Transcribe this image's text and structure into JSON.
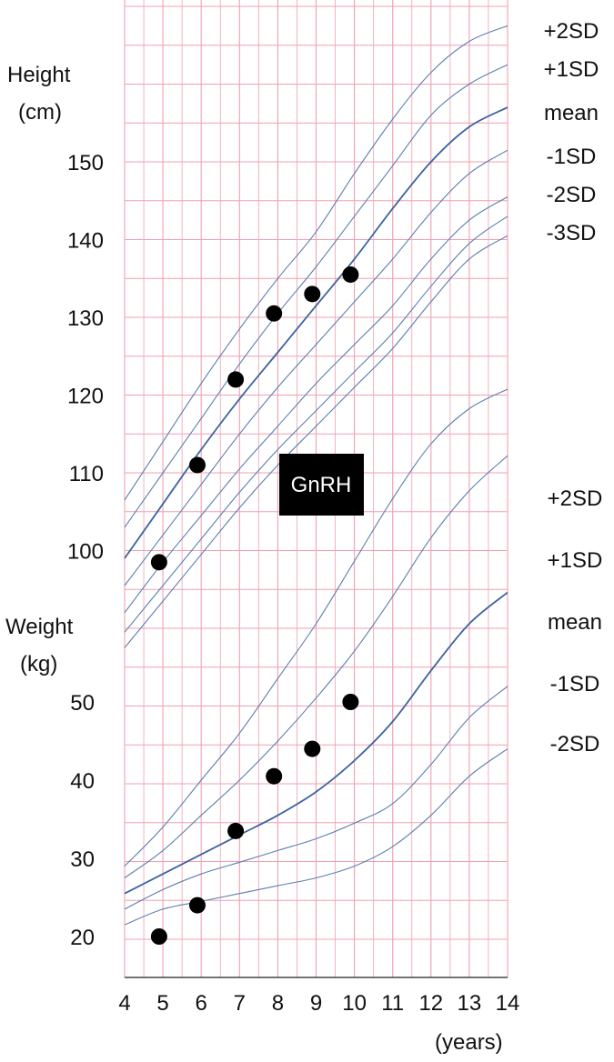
{
  "chart_data": {
    "type": "scatter",
    "x_ticks": [
      4,
      5,
      6,
      7,
      8,
      9,
      10,
      11,
      12,
      13,
      14
    ],
    "x_unit": "(years)",
    "height_axis": {
      "label_line1": "Height",
      "label_line2": "(cm)",
      "ticks": [
        100,
        110,
        120,
        130,
        140,
        150
      ]
    },
    "weight_axis": {
      "label_line1": "Weight",
      "label_line2": "(kg)",
      "ticks": [
        20,
        30,
        40,
        50
      ]
    },
    "annotation": "GnRH",
    "colors": {
      "grid": "#f0a0b0",
      "curve": "#5a7fb0",
      "mean_curve": "#3c64a0",
      "point": "#000000"
    },
    "height_sd_labels": [
      "+2SD",
      "+1SD",
      "mean",
      "-1SD",
      "-2SD",
      "-3SD"
    ],
    "weight_sd_labels": [
      "+2SD",
      "+1SD",
      "mean",
      "-1SD",
      "-2SD"
    ],
    "height_curves": [
      {
        "name": "+2SD",
        "x": [
          4,
          5,
          6,
          7,
          8,
          9,
          10,
          11,
          12,
          13,
          14
        ],
        "y": [
          106.5,
          114,
          121.5,
          128.5,
          135,
          141,
          148.5,
          155.5,
          161.5,
          165.5,
          167.5
        ]
      },
      {
        "name": "+1SD",
        "x": [
          4,
          5,
          6,
          7,
          8,
          9,
          10,
          11,
          12,
          13,
          14
        ],
        "y": [
          103,
          110,
          117,
          124,
          130.5,
          136.5,
          143,
          149.5,
          156,
          160,
          162.5
        ]
      },
      {
        "name": "mean",
        "x": [
          4,
          5,
          6,
          7,
          8,
          9,
          10,
          11,
          12,
          13,
          14
        ],
        "y": [
          99,
          106,
          113,
          119.5,
          125.5,
          131.5,
          137.5,
          144,
          150,
          154.5,
          157
        ]
      },
      {
        "name": "-1SD",
        "x": [
          4,
          5,
          6,
          7,
          8,
          9,
          10,
          11,
          12,
          13,
          14
        ],
        "y": [
          95.5,
          102,
          108.5,
          115,
          121,
          126.5,
          132,
          137.5,
          143.5,
          148.5,
          151.5
        ]
      },
      {
        "name": "-2SD",
        "x": [
          4,
          5,
          6,
          7,
          8,
          9,
          10,
          11,
          12,
          13,
          14
        ],
        "y": [
          92,
          98.5,
          104.5,
          110.5,
          116,
          121.5,
          126.5,
          131.5,
          137.5,
          142.5,
          145.5
        ]
      },
      {
        "name": "-3SD (upper)",
        "x": [
          4,
          5,
          6,
          7,
          8,
          9,
          10,
          11,
          12,
          13,
          14
        ],
        "y": [
          89.5,
          95.5,
          101.5,
          107.5,
          113,
          118,
          123,
          128,
          134,
          139.5,
          143
        ]
      },
      {
        "name": "-3SD",
        "x": [
          4,
          5,
          6,
          7,
          8,
          9,
          10,
          11,
          12,
          13,
          14
        ],
        "y": [
          87.5,
          93.5,
          99.5,
          105.5,
          111,
          116,
          121,
          126,
          132,
          137.5,
          140.5
        ]
      }
    ],
    "weight_curves": [
      {
        "name": "+2SD",
        "x": [
          4,
          5,
          6,
          7,
          8,
          9,
          10,
          11,
          12,
          13,
          14
        ],
        "y": [
          29,
          34,
          40,
          46,
          53,
          60,
          68,
          76,
          83,
          87.5,
          90
        ]
      },
      {
        "name": "+1SD",
        "x": [
          4,
          5,
          6,
          7,
          8,
          9,
          10,
          11,
          12,
          13,
          14
        ],
        "y": [
          27.5,
          31,
          35.5,
          40,
          45,
          50.5,
          56.5,
          63.5,
          71,
          77,
          81.5
        ]
      },
      {
        "name": "mean",
        "x": [
          4,
          5,
          6,
          7,
          8,
          9,
          10,
          11,
          12,
          13,
          14
        ],
        "y": [
          25.5,
          28,
          30.5,
          33,
          35.5,
          38.5,
          42.5,
          47.5,
          54,
          60,
          64
        ]
      },
      {
        "name": "-1SD",
        "x": [
          4,
          5,
          6,
          7,
          8,
          9,
          10,
          11,
          12,
          13,
          14
        ],
        "y": [
          23.5,
          26,
          28,
          29.5,
          31,
          32.5,
          34.5,
          37,
          42,
          48,
          52
        ]
      },
      {
        "name": "-2SD",
        "x": [
          4,
          5,
          6,
          7,
          8,
          9,
          10,
          11,
          12,
          13,
          14
        ],
        "y": [
          21.5,
          23.5,
          24.5,
          25.5,
          26.5,
          27.5,
          29,
          31.5,
          35.5,
          40.5,
          44
        ]
      }
    ],
    "height_points": {
      "x": [
        4.9,
        5.9,
        6.9,
        7.9,
        8.9,
        9.9
      ],
      "y": [
        98.5,
        111,
        122,
        130.5,
        133,
        135.5
      ]
    },
    "weight_points": {
      "x": [
        4.9,
        5.9,
        6.9,
        7.9,
        8.9,
        9.9
      ],
      "y": [
        20,
        24,
        33.5,
        40.5,
        44,
        50
      ]
    }
  }
}
